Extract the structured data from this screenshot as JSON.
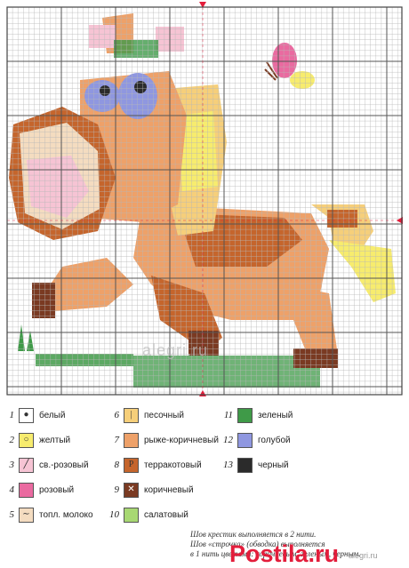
{
  "watermark": "alegri.ru",
  "branding": {
    "site": "Postila.ru",
    "source": "alegri.ru"
  },
  "legend": [
    {
      "num": "1",
      "name": "белый",
      "color": "#ffffff",
      "symbol": "●"
    },
    {
      "num": "2",
      "name": "желтый",
      "color": "#f7ec6e",
      "symbol": "○"
    },
    {
      "num": "3",
      "name": "св.-розовый",
      "color": "#f6c4d4",
      "symbol": "╱"
    },
    {
      "num": "4",
      "name": "розовый",
      "color": "#ea6aa0",
      "symbol": ""
    },
    {
      "num": "5",
      "name": "топл. молоко",
      "color": "#f4dcc0",
      "symbol": "∼"
    },
    {
      "num": "6",
      "name": "песочный",
      "color": "#f6cf7a",
      "symbol": "|"
    },
    {
      "num": "7",
      "name": "рыже-коричневый",
      "color": "#eea169",
      "symbol": ""
    },
    {
      "num": "8",
      "name": "терракотовый",
      "color": "#c5652c",
      "symbol": "P"
    },
    {
      "num": "9",
      "name": "коричневый",
      "color": "#7a3a22",
      "symbol": "✕"
    },
    {
      "num": "10",
      "name": "салатовый",
      "color": "#a8d873",
      "symbol": ""
    },
    {
      "num": "11",
      "name": "зеленый",
      "color": "#3f9a48",
      "symbol": ""
    },
    {
      "num": "12",
      "name": "голубой",
      "color": "#8f97e0",
      "symbol": ""
    },
    {
      "num": "13",
      "name": "черный",
      "color": "#2b2b2b",
      "symbol": ""
    }
  ],
  "note": {
    "line1": "Шов крестик выполняется в 2 нити.",
    "line2": "Шов «строчка» (обводка) выполняется",
    "line3": "в 1 нить цветами: коричневым, зеленым, черным."
  }
}
